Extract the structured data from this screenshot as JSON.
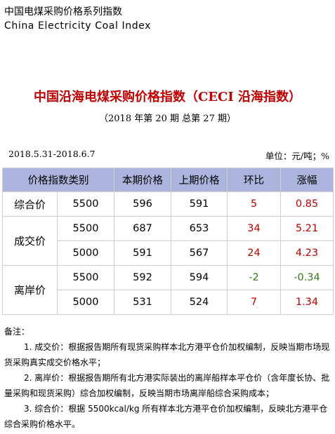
{
  "header": {
    "title_cn": "中国电煤采购价格系列指数",
    "title_en": "China Electricity Coal Index"
  },
  "doc": {
    "title": "中国沿海电煤采购价格指数（CECI 沿海指数）",
    "subtitle": "（2018 年第 20 期   总第 27 期）",
    "date_range": "2018.5.31-2018.6.7",
    "unit": "单位：元/吨；%"
  },
  "table": {
    "headers": [
      "价格指数类别",
      "本期价格",
      "上期价格",
      "环比",
      "涨幅"
    ],
    "rows": [
      {
        "category": "综合价",
        "spec": "5500",
        "current": "596",
        "previous": "591",
        "change": "5",
        "pct": "0.85",
        "dir": "up"
      },
      {
        "category": "成交价",
        "spec": "5500",
        "current": "687",
        "previous": "653",
        "change": "34",
        "pct": "5.21",
        "dir": "up"
      },
      {
        "category": "",
        "spec": "5000",
        "current": "591",
        "previous": "567",
        "change": "24",
        "pct": "4.23",
        "dir": "up"
      },
      {
        "category": "离岸价",
        "spec": "5500",
        "current": "592",
        "previous": "594",
        "change": "-2",
        "pct": "-0.34",
        "dir": "down"
      },
      {
        "category": "",
        "spec": "5000",
        "current": "531",
        "previous": "524",
        "change": "7",
        "pct": "1.34",
        "dir": "up"
      }
    ]
  },
  "notes": {
    "label": "备注：",
    "items": [
      "1. 成交价：根据报告期所有现货采购样本北方港平仓价加权编制，反映当期市场现货采购真实成交价格水平；",
      "2. 离岸价：根据报告期所有北方港实际装出的离岸船样本平仓价（含年度长协、批量采购和现货采购）综合加权编制，反映当期市场离岸船综合采购成本；",
      "3. 综合价：根据 5500kcal/kg 所有样本北方港平仓价加权编制，反映北方港平仓综合采购价格水平。"
    ]
  },
  "colors": {
    "header_bg": "#aab4dc",
    "title_red": "#c00000",
    "positive": "#c00000",
    "negative": "#3b7a1a"
  }
}
